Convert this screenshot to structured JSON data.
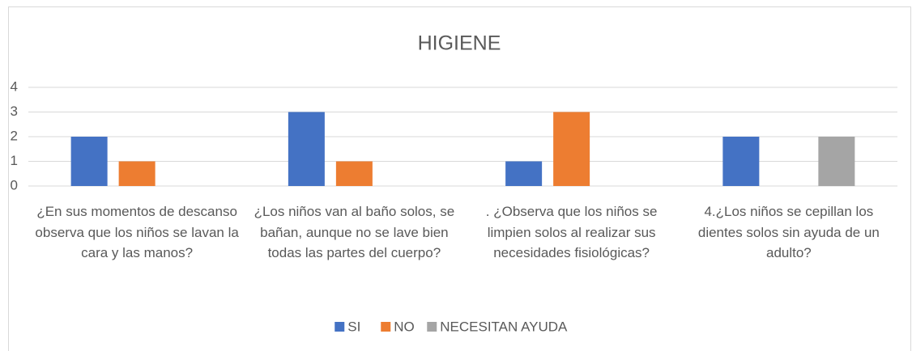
{
  "chart_data": {
    "type": "bar",
    "title": "HIGIENE",
    "categories": [
      "¿En sus momentos de descanso observa que los niños se lavan la cara y las manos?",
      "¿Los niños van al baño solos, se bañan, aunque no se lave bien todas las partes del cuerpo?",
      ". ¿Observa que los niños se limpien solos al realizar sus necesidades fisiológicas?",
      "4.¿Los niños se cepillan los dientes solos sin ayuda de un adulto?"
    ],
    "series": [
      {
        "name": "SI",
        "color": "#4472c4",
        "values": [
          2,
          3,
          1,
          2
        ]
      },
      {
        "name": "NO",
        "color": "#ed7d31",
        "values": [
          1,
          1,
          3,
          0
        ]
      },
      {
        "name": "NECESITAN AYUDA",
        "color": "#a5a5a5",
        "values": [
          0,
          0,
          0,
          2
        ]
      }
    ],
    "ylim": [
      0,
      4
    ],
    "yticks": [
      0,
      1,
      2,
      3,
      4
    ],
    "grid": true,
    "legend": "bottom"
  }
}
